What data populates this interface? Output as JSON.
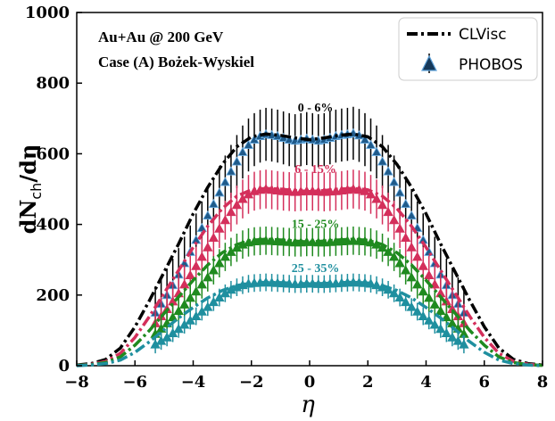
{
  "chart_data": {
    "type": "line",
    "xlabel": "η",
    "ylabel": "dN",
    "ylabel_sub": "ch",
    "ylabel_tail": "/dη",
    "xlim": [
      -8,
      8
    ],
    "ylim": [
      0,
      1000
    ],
    "x_ticks": [
      "−8",
      "−6",
      "−4",
      "−2",
      "0",
      "2",
      "4",
      "6",
      "8"
    ],
    "y_ticks": [
      "0",
      "200",
      "400",
      "600",
      "800",
      "1000"
    ],
    "annotations": [
      "Au+Au @ 200 GeV",
      "Case (A)  Bożek-Wyskiel"
    ],
    "legend": {
      "position": "top-right",
      "entries": [
        {
          "label": "CLVisc",
          "style": "dashdot-line"
        },
        {
          "label": "PHOBOS",
          "style": "triangle-marker-errorbar"
        }
      ]
    },
    "series": [
      {
        "name": "0 - 6%",
        "color": "#000000",
        "marker_color": "#1f5a8a",
        "model": {
          "x": [
            -8,
            -7.5,
            -7,
            -6.5,
            -6,
            -5.5,
            -5,
            -4.5,
            -4,
            -3.5,
            -3,
            -2.5,
            -2,
            -1.5,
            -1,
            -0.5,
            0,
            0.5,
            1,
            1.5,
            2,
            2.5,
            3,
            3.5,
            4,
            4.5,
            5,
            5.5,
            6,
            6.5,
            7,
            7.5,
            8
          ],
          "y": [
            2,
            6,
            18,
            50,
            110,
            185,
            265,
            345,
            430,
            505,
            570,
            620,
            648,
            656,
            652,
            645,
            640,
            645,
            652,
            656,
            648,
            620,
            570,
            505,
            430,
            345,
            265,
            185,
            110,
            50,
            18,
            6,
            2
          ]
        },
        "data": {
          "x": [
            -5.3,
            -5.1,
            -4.9,
            -4.7,
            -4.5,
            -4.3,
            -4.1,
            -3.9,
            -3.7,
            -3.5,
            -3.3,
            -3.1,
            -2.9,
            -2.7,
            -2.5,
            -2.3,
            -2.1,
            -1.9,
            -1.7,
            -1.5,
            -1.3,
            -1.1,
            -0.9,
            -0.7,
            -0.5,
            -0.3,
            -0.1,
            0.1,
            0.3,
            0.5,
            0.7,
            0.9,
            1.1,
            1.3,
            1.5,
            1.7,
            1.9,
            2.1,
            2.3,
            2.5,
            2.7,
            2.9,
            3.1,
            3.3,
            3.5,
            3.7,
            3.9,
            4.1,
            4.3,
            4.5,
            4.7,
            4.9,
            5.1,
            5.3
          ],
          "y": [
            150,
            175,
            200,
            228,
            258,
            290,
            322,
            356,
            390,
            425,
            458,
            490,
            520,
            550,
            578,
            605,
            625,
            640,
            650,
            655,
            653,
            650,
            645,
            640,
            637,
            640,
            643,
            640,
            637,
            640,
            645,
            650,
            653,
            655,
            658,
            652,
            640,
            625,
            605,
            578,
            550,
            520,
            490,
            458,
            425,
            390,
            356,
            322,
            290,
            258,
            228,
            200,
            175,
            150
          ],
          "err": 75
        }
      },
      {
        "name": "6 - 15%",
        "color": "#d42f5b",
        "marker_color": "#d42f5b",
        "model": {
          "x": [
            -8,
            -7.5,
            -7,
            -6.5,
            -6,
            -5.5,
            -5,
            -4.5,
            -4,
            -3.5,
            -3,
            -2.5,
            -2,
            -1.5,
            -1,
            -0.5,
            0,
            0.5,
            1,
            1.5,
            2,
            2.5,
            3,
            3.5,
            4,
            4.5,
            5,
            5.5,
            6,
            6.5,
            7,
            7.5,
            8
          ],
          "y": [
            1,
            4,
            12,
            35,
            80,
            140,
            205,
            270,
            335,
            395,
            445,
            480,
            498,
            502,
            500,
            496,
            493,
            496,
            500,
            502,
            498,
            480,
            445,
            395,
            335,
            270,
            205,
            140,
            80,
            35,
            12,
            4,
            1
          ]
        },
        "data": {
          "x": [
            -5.3,
            -5.1,
            -4.9,
            -4.7,
            -4.5,
            -4.3,
            -4.1,
            -3.9,
            -3.7,
            -3.5,
            -3.3,
            -3.1,
            -2.9,
            -2.7,
            -2.5,
            -2.3,
            -2.1,
            -1.9,
            -1.7,
            -1.5,
            -1.3,
            -1.1,
            -0.9,
            -0.7,
            -0.5,
            -0.3,
            -0.1,
            0.1,
            0.3,
            0.5,
            0.7,
            0.9,
            1.1,
            1.3,
            1.5,
            1.7,
            1.9,
            2.1,
            2.3,
            2.5,
            2.7,
            2.9,
            3.1,
            3.3,
            3.5,
            3.7,
            3.9,
            4.1,
            4.3,
            4.5,
            4.7,
            4.9,
            5.1,
            5.3
          ],
          "y": [
            120,
            140,
            160,
            182,
            205,
            230,
            256,
            282,
            308,
            335,
            362,
            388,
            412,
            435,
            455,
            472,
            485,
            494,
            498,
            500,
            498,
            496,
            494,
            493,
            492,
            493,
            494,
            494,
            493,
            492,
            493,
            494,
            496,
            498,
            500,
            498,
            494,
            485,
            472,
            455,
            435,
            412,
            388,
            362,
            335,
            308,
            282,
            256,
            230,
            205,
            182,
            160,
            140,
            120
          ],
          "err": 55
        }
      },
      {
        "name": "15 - 25%",
        "color": "#1f8a1f",
        "marker_color": "#1f8a1f",
        "model": {
          "x": [
            -8,
            -7.5,
            -7,
            -6.5,
            -6,
            -5.5,
            -5,
            -4.5,
            -4,
            -3.5,
            -3,
            -2.5,
            -2,
            -1.5,
            -1,
            -0.5,
            0,
            0.5,
            1,
            1.5,
            2,
            2.5,
            3,
            3.5,
            4,
            4.5,
            5,
            5.5,
            6,
            6.5,
            7,
            7.5,
            8
          ],
          "y": [
            1,
            3,
            9,
            25,
            58,
            100,
            148,
            195,
            242,
            285,
            320,
            343,
            355,
            358,
            356,
            353,
            350,
            353,
            356,
            358,
            355,
            343,
            320,
            285,
            242,
            195,
            148,
            100,
            58,
            25,
            9,
            3,
            1
          ]
        },
        "data": {
          "x": [
            -5.3,
            -5.1,
            -4.9,
            -4.7,
            -4.5,
            -4.3,
            -4.1,
            -3.9,
            -3.7,
            -3.5,
            -3.3,
            -3.1,
            -2.9,
            -2.7,
            -2.5,
            -2.3,
            -2.1,
            -1.9,
            -1.7,
            -1.5,
            -1.3,
            -1.1,
            -0.9,
            -0.7,
            -0.5,
            -0.3,
            -0.1,
            0.1,
            0.3,
            0.5,
            0.7,
            0.9,
            1.1,
            1.3,
            1.5,
            1.7,
            1.9,
            2.1,
            2.3,
            2.5,
            2.7,
            2.9,
            3.1,
            3.3,
            3.5,
            3.7,
            3.9,
            4.1,
            4.3,
            4.5,
            4.7,
            4.9,
            5.1,
            5.3
          ],
          "y": [
            90,
            105,
            120,
            137,
            155,
            173,
            192,
            210,
            230,
            250,
            270,
            290,
            308,
            322,
            334,
            343,
            349,
            352,
            353,
            354,
            353,
            352,
            351,
            350,
            349,
            349,
            350,
            350,
            349,
            349,
            350,
            351,
            352,
            353,
            354,
            353,
            352,
            349,
            343,
            334,
            322,
            308,
            290,
            270,
            250,
            230,
            210,
            192,
            173,
            155,
            137,
            120,
            105,
            90
          ],
          "err": 40
        }
      },
      {
        "name": "25 - 35%",
        "color": "#1f8f9f",
        "marker_color": "#1f8f9f",
        "model": {
          "x": [
            -8,
            -7.5,
            -7,
            -6.5,
            -6,
            -5.5,
            -5,
            -4.5,
            -4,
            -3.5,
            -3,
            -2.5,
            -2,
            -1.5,
            -1,
            -0.5,
            0,
            0.5,
            1,
            1.5,
            2,
            2.5,
            3,
            3.5,
            4,
            4.5,
            5,
            5.5,
            6,
            6.5,
            7,
            7.5,
            8
          ],
          "y": [
            0,
            2,
            6,
            16,
            38,
            68,
            102,
            135,
            165,
            192,
            213,
            227,
            234,
            236,
            235,
            233,
            232,
            233,
            235,
            236,
            234,
            227,
            213,
            192,
            165,
            135,
            102,
            68,
            38,
            16,
            6,
            2,
            0
          ]
        },
        "data": {
          "x": [
            -5.3,
            -5.1,
            -4.9,
            -4.7,
            -4.5,
            -4.3,
            -4.1,
            -3.9,
            -3.7,
            -3.5,
            -3.3,
            -3.1,
            -2.9,
            -2.7,
            -2.5,
            -2.3,
            -2.1,
            -1.9,
            -1.7,
            -1.5,
            -1.3,
            -1.1,
            -0.9,
            -0.7,
            -0.5,
            -0.3,
            -0.1,
            0.1,
            0.3,
            0.5,
            0.7,
            0.9,
            1.1,
            1.3,
            1.5,
            1.7,
            1.9,
            2.1,
            2.3,
            2.5,
            2.7,
            2.9,
            3.1,
            3.3,
            3.5,
            3.7,
            3.9,
            4.1,
            4.3,
            4.5,
            4.7,
            4.9,
            5.1,
            5.3
          ],
          "y": [
            60,
            70,
            80,
            92,
            104,
            116,
            128,
            140,
            153,
            166,
            180,
            193,
            205,
            215,
            222,
            228,
            232,
            234,
            235,
            236,
            235,
            234,
            233,
            232,
            231,
            231,
            232,
            232,
            231,
            231,
            232,
            233,
            234,
            235,
            236,
            235,
            234,
            232,
            228,
            222,
            215,
            205,
            193,
            180,
            166,
            153,
            140,
            128,
            116,
            104,
            92,
            80,
            70,
            60
          ],
          "err": 25
        }
      }
    ],
    "series_label_positions": [
      {
        "x": 0.2,
        "y": 720
      },
      {
        "x": 0.2,
        "y": 545
      },
      {
        "x": 0.2,
        "y": 390
      },
      {
        "x": 0.2,
        "y": 265
      }
    ]
  }
}
